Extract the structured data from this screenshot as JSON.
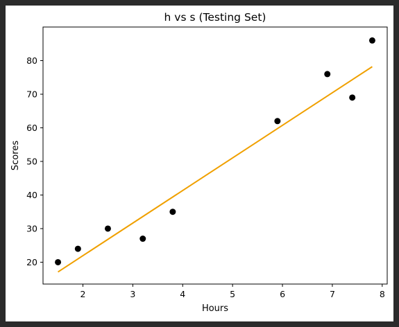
{
  "chart_data": {
    "type": "scatter",
    "title": "h vs s (Testing Set)",
    "xlabel": "Hours",
    "ylabel": "Scores",
    "xlim": [
      1.2,
      8.1
    ],
    "ylim": [
      13.5,
      90
    ],
    "xticks": [
      2,
      3,
      4,
      5,
      6,
      7,
      8
    ],
    "yticks": [
      20,
      30,
      40,
      50,
      60,
      70,
      80
    ],
    "grid": false,
    "points": [
      {
        "x": 1.5,
        "y": 20
      },
      {
        "x": 1.9,
        "y": 24
      },
      {
        "x": 2.5,
        "y": 30
      },
      {
        "x": 3.2,
        "y": 27
      },
      {
        "x": 3.8,
        "y": 35
      },
      {
        "x": 5.9,
        "y": 62
      },
      {
        "x": 6.9,
        "y": 76
      },
      {
        "x": 7.4,
        "y": 69
      },
      {
        "x": 7.8,
        "y": 86
      }
    ],
    "regression_line": {
      "x": [
        1.5,
        7.8
      ],
      "y": [
        17.1,
        78.2
      ]
    },
    "colors": {
      "points": "#000000",
      "line": "#f0a000"
    }
  }
}
